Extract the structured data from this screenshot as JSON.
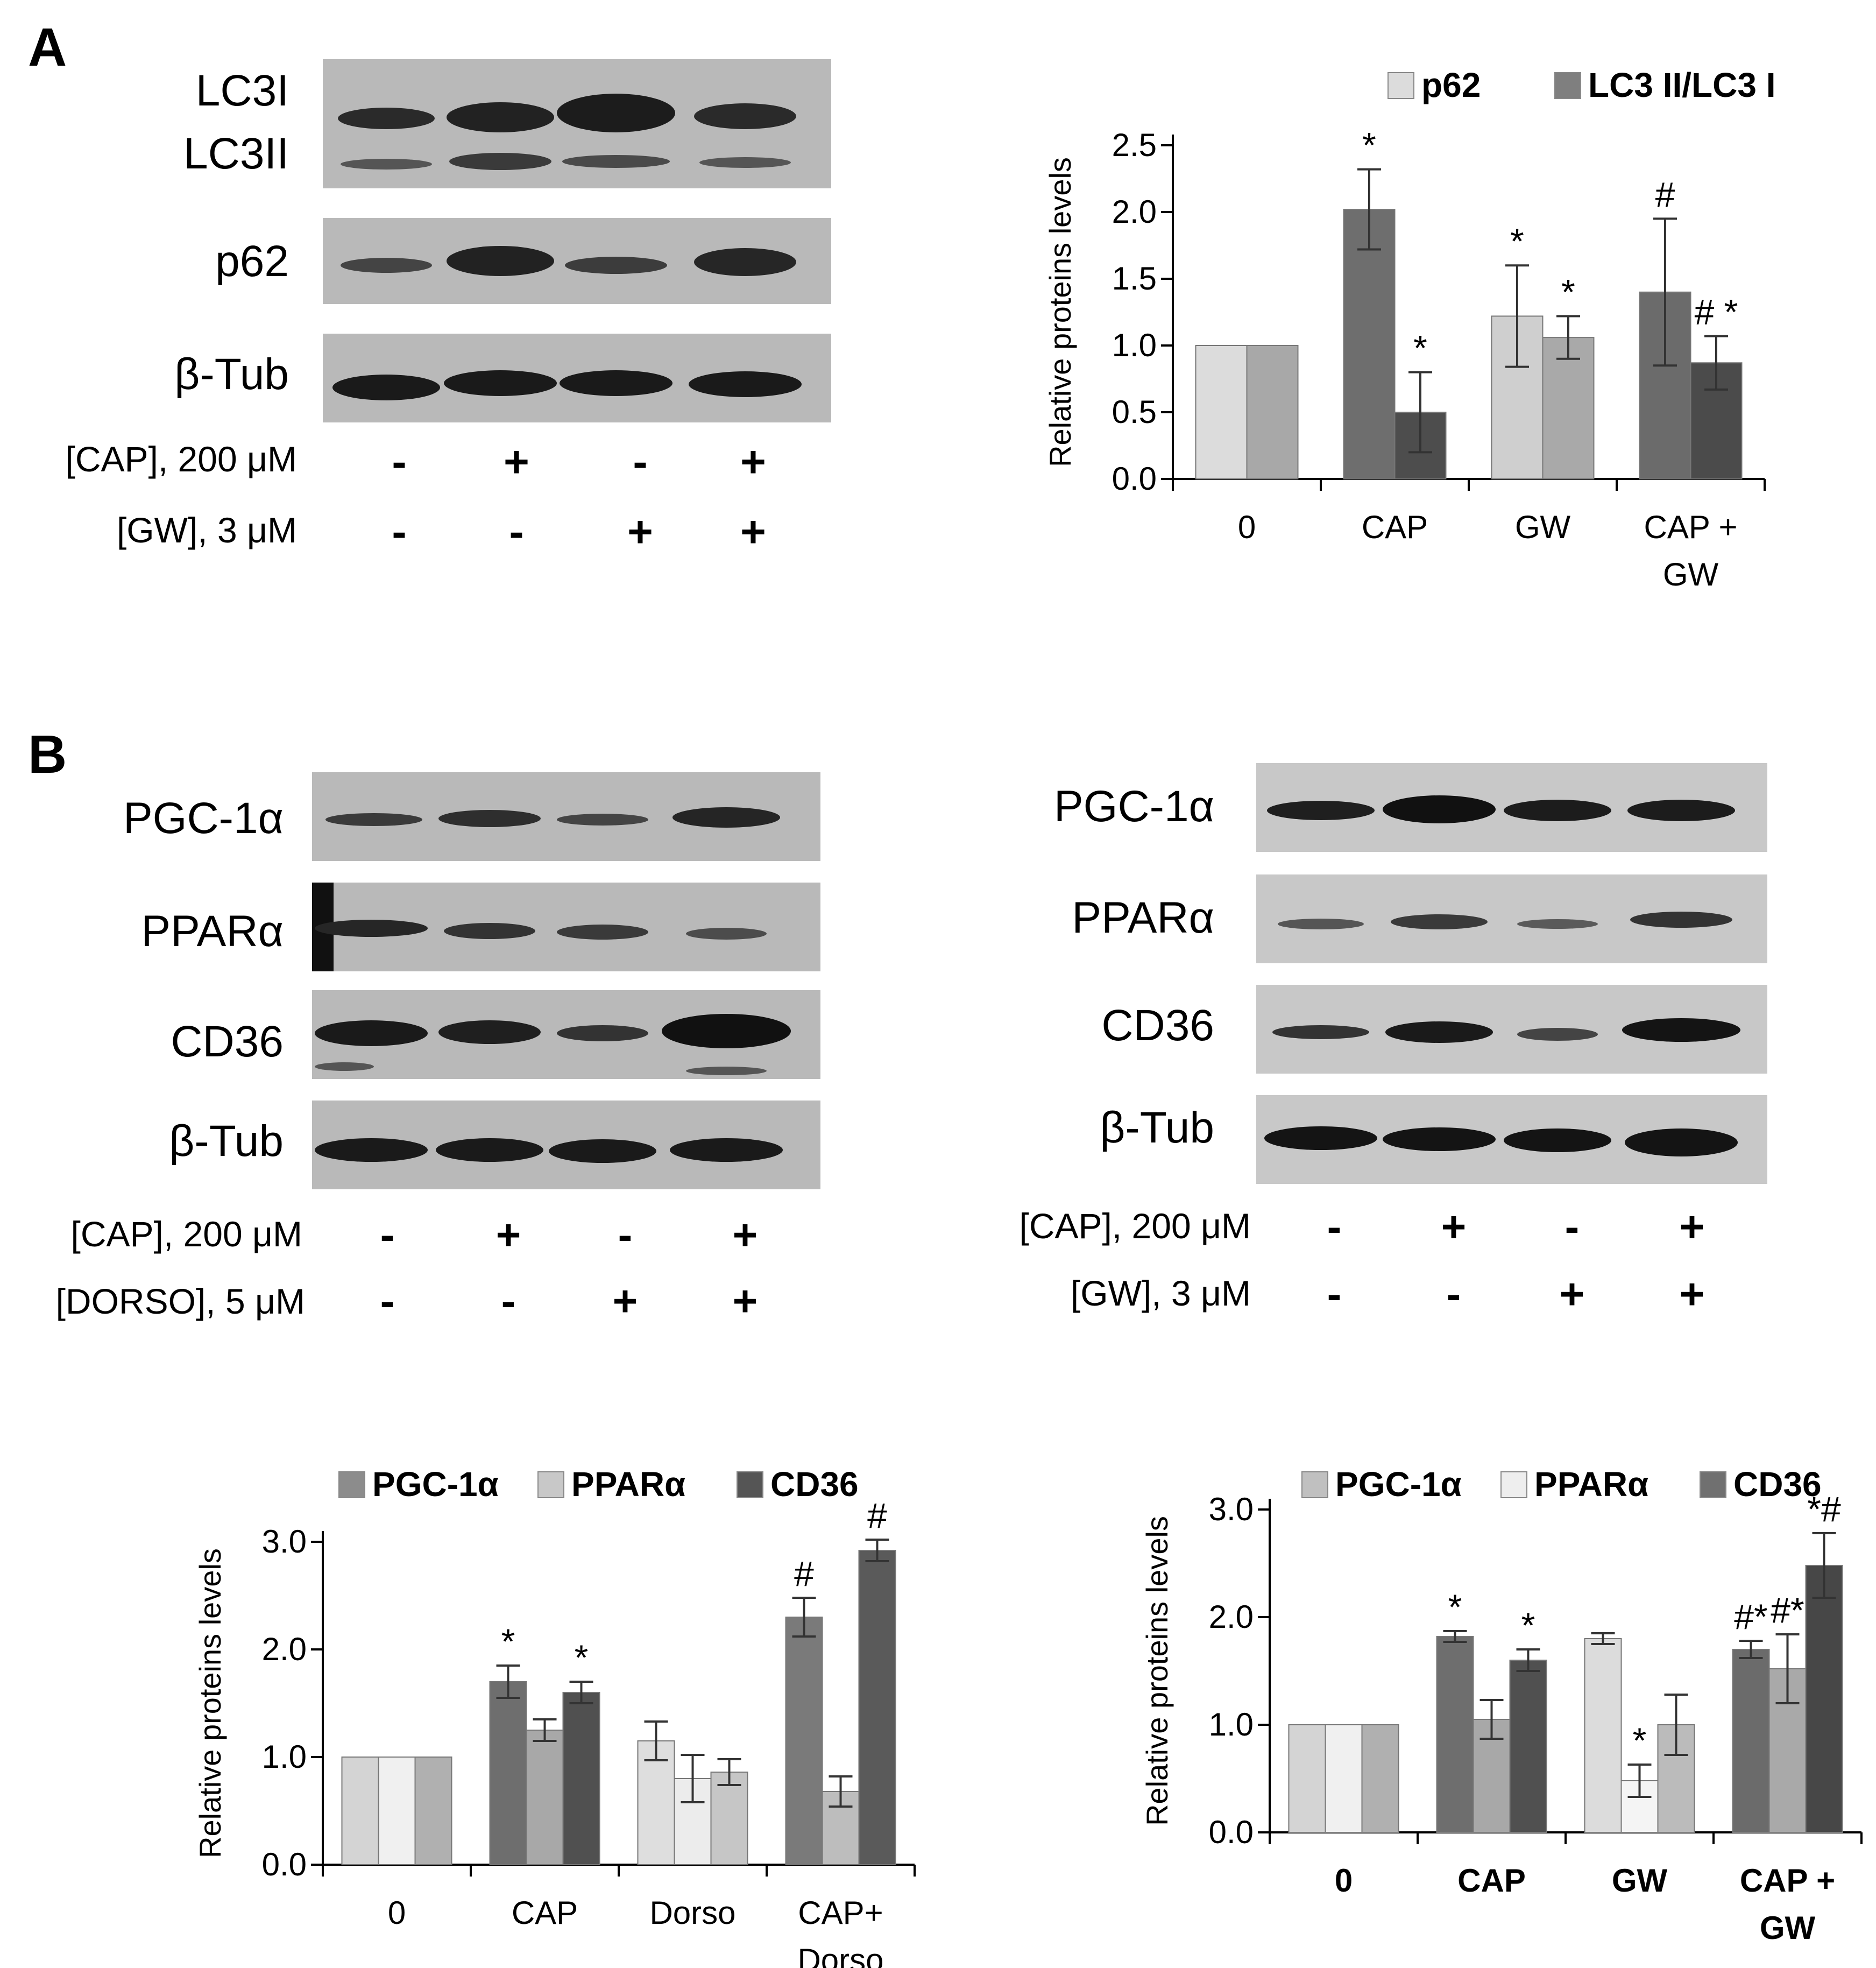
{
  "panel_labels": {
    "a": "A",
    "b": "B"
  },
  "colors": {
    "blot_bg": "#b9b9b9",
    "band": "#2a2a2a",
    "axis": "#000000"
  },
  "panel_a": {
    "blot_labels": [
      "LC3I",
      "LC3II",
      "p62",
      "β-Tub"
    ],
    "treatments": [
      {
        "label": "[CAP],  200 μM",
        "signs": [
          "-",
          "+",
          "-",
          "+"
        ]
      },
      {
        "label": "[GW], 3 μM",
        "signs": [
          "-",
          "-",
          "+",
          "+"
        ]
      }
    ]
  },
  "panel_b_left": {
    "blot_labels": [
      "PGC-1α",
      "PPARα",
      "CD36",
      "β-Tub"
    ],
    "treatments": [
      {
        "label": "[CAP],  200 μM",
        "signs": [
          "-",
          "+",
          "-",
          "+"
        ]
      },
      {
        "label": "[DORSO], 5 μM",
        "signs": [
          "-",
          "-",
          "+",
          "+"
        ]
      }
    ]
  },
  "panel_b_right": {
    "blot_labels": [
      "PGC-1α",
      "PPARα",
      "CD36",
      "β-Tub"
    ],
    "treatments": [
      {
        "label": "[CAP],  200 μM",
        "signs": [
          "-",
          "+",
          "-",
          "+"
        ]
      },
      {
        "label": "[GW], 3 μM",
        "signs": [
          "-",
          "-",
          "+",
          "+"
        ]
      }
    ]
  },
  "chart_data": [
    {
      "id": "A",
      "type": "bar",
      "ylabel": "Relative proteins levels",
      "ylim": [
        0,
        2.5
      ],
      "yticks": [
        0.0,
        0.5,
        1.0,
        1.5,
        2.0,
        2.5
      ],
      "tick_format": "0.0",
      "categories": [
        [
          "0"
        ],
        [
          "CAP"
        ],
        [
          "GW"
        ],
        [
          "CAP +",
          "GW"
        ]
      ],
      "legend_position": "top-right",
      "series": [
        {
          "name": "p62",
          "values": [
            1.0,
            2.02,
            1.22,
            1.4
          ],
          "errors": [
            0,
            0.3,
            0.38,
            0.55
          ],
          "colors": [
            "#dcdcdc",
            "#6e6e6e",
            "#cfcfcf",
            "#6b6b6b"
          ],
          "legend_color": "#dcdcdc",
          "annotations": [
            "",
            "*",
            "*",
            "#"
          ]
        },
        {
          "name": "LC3 II/LC3 I",
          "values": [
            1.0,
            0.5,
            1.06,
            0.87
          ],
          "errors": [
            0,
            0.3,
            0.16,
            0.2
          ],
          "colors": [
            "#a8a8a8",
            "#4d4d4d",
            "#a9a9a9",
            "#4b4b4b"
          ],
          "legend_color": "#7f7f7f",
          "annotations": [
            "",
            "*",
            "*",
            "#  *"
          ]
        }
      ]
    },
    {
      "id": "B-left",
      "type": "bar",
      "ylabel": "Relative proteins levels",
      "ylim": [
        0,
        3.0
      ],
      "yticks": [
        0.0,
        1.0,
        2.0,
        3.0
      ],
      "tick_format": "0.0",
      "categories": [
        [
          "0"
        ],
        [
          "CAP"
        ],
        [
          "Dorso"
        ],
        [
          "CAP+",
          "Dorso"
        ]
      ],
      "legend_position": "top",
      "series": [
        {
          "name": "PGC-1α",
          "values": [
            1.0,
            1.7,
            1.15,
            2.3
          ],
          "errors": [
            0,
            0.15,
            0.18,
            0.18
          ],
          "colors": [
            "#d4d4d4",
            "#6e6e6e",
            "#dedede",
            "#7a7a7a"
          ],
          "legend_color": "#8c8c8c",
          "annotations": [
            "",
            "*",
            "",
            "#"
          ]
        },
        {
          "name": "PPARα",
          "values": [
            1.0,
            1.25,
            0.8,
            0.68
          ],
          "errors": [
            0,
            0.1,
            0.22,
            0.14
          ],
          "colors": [
            "#f0f0f0",
            "#a8a8a8",
            "#ececec",
            "#bdbdbd"
          ],
          "legend_color": "#c8c8c8",
          "annotations": [
            "",
            "",
            "",
            ""
          ]
        },
        {
          "name": "CD36",
          "values": [
            1.0,
            1.6,
            0.86,
            2.92
          ],
          "errors": [
            0,
            0.1,
            0.12,
            0.1
          ],
          "colors": [
            "#b0b0b0",
            "#505050",
            "#c6c6c6",
            "#5a5a5a"
          ],
          "legend_color": "#555555",
          "annotations": [
            "",
            "*",
            "",
            "#"
          ]
        }
      ]
    },
    {
      "id": "B-right",
      "type": "bar",
      "ylabel": "Relative proteins levels",
      "ylim": [
        0,
        3.0
      ],
      "yticks": [
        0.0,
        1.0,
        2.0,
        3.0
      ],
      "tick_format": "0.0",
      "categories": [
        [
          "0"
        ],
        [
          "CAP"
        ],
        [
          "GW"
        ],
        [
          "CAP +",
          "GW"
        ]
      ],
      "legend_position": "top",
      "series": [
        {
          "name": "PGC-1α",
          "values": [
            1.0,
            1.82,
            1.8,
            1.7
          ],
          "errors": [
            0,
            0.05,
            0.05,
            0.08
          ],
          "colors": [
            "#d4d4d4",
            "#6e6e6e",
            "#dcdcdc",
            "#6b6b6b"
          ],
          "legend_color": "#c0c0c0",
          "annotations": [
            "",
            "*",
            "",
            "#*"
          ]
        },
        {
          "name": "PPARα",
          "values": [
            1.0,
            1.05,
            0.48,
            1.52
          ],
          "errors": [
            0,
            0.18,
            0.15,
            0.32
          ],
          "colors": [
            "#f0f0f0",
            "#a8a8a8",
            "#f4f4f4",
            "#a9a9a9"
          ],
          "legend_color": "#eeeeee",
          "annotations": [
            "",
            "",
            "*",
            "#*"
          ]
        },
        {
          "name": "CD36",
          "values": [
            1.0,
            1.6,
            1.0,
            2.48
          ],
          "errors": [
            0,
            0.1,
            0.28,
            0.3
          ],
          "colors": [
            "#b0b0b0",
            "#505050",
            "#bbbbbb",
            "#474747"
          ],
          "legend_color": "#707070",
          "annotations": [
            "",
            "*",
            "",
            "*#"
          ]
        }
      ]
    }
  ]
}
